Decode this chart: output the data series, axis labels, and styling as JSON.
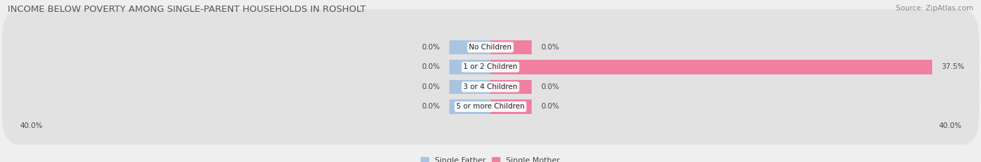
{
  "title": "INCOME BELOW POVERTY AMONG SINGLE-PARENT HOUSEHOLDS IN ROSHOLT",
  "source_text": "Source: ZipAtlas.com",
  "categories": [
    "No Children",
    "1 or 2 Children",
    "3 or 4 Children",
    "5 or more Children"
  ],
  "single_father": [
    0.0,
    0.0,
    0.0,
    0.0
  ],
  "single_mother": [
    0.0,
    37.5,
    0.0,
    0.0
  ],
  "max_val": 40.0,
  "color_father": "#a8c4e0",
  "color_mother": "#f07fa0",
  "background_color": "#efefef",
  "row_bg_color": "#e2e2e2",
  "row_bg_color2": "#d8d8d8",
  "title_fontsize": 9.5,
  "label_fontsize": 7.5,
  "source_fontsize": 7.5,
  "legend_fontsize": 8,
  "val_label_fontsize": 7.5
}
